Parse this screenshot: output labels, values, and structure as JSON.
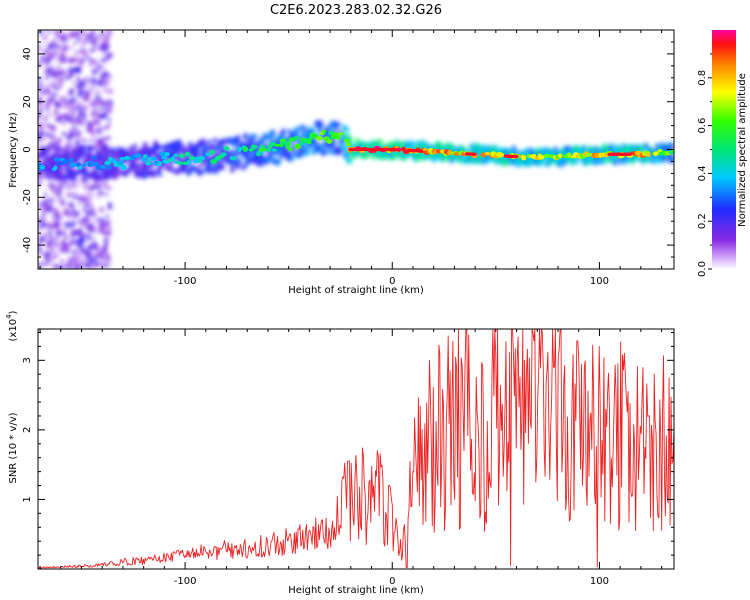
{
  "figure": {
    "title": "C2E6.2023.283.02.32.G26"
  },
  "colors": {
    "snr_line": "#ee2222",
    "background": "#ffffff",
    "axes": "#000000"
  },
  "chart_data": [
    {
      "type": "heatmap",
      "xlabel": "Height of straight line (km)",
      "ylabel": "Frequency (Hz)",
      "xlim": [
        -171,
        136
      ],
      "ylim": [
        -50,
        50
      ],
      "xticks": [
        -100,
        0,
        100
      ],
      "xtick_labels": [
        "-100",
        "0",
        "100"
      ],
      "yticks": [
        -40,
        -20,
        0,
        20,
        40
      ],
      "ytick_labels": [
        "-40",
        "-20",
        "0",
        "20",
        "40"
      ],
      "grid": false,
      "colorbar": {
        "label": "Normalized spectral amplitude",
        "range": [
          0,
          1
        ],
        "ticks": [
          0.0,
          0.2,
          0.4,
          0.6,
          0.8
        ],
        "tick_labels": [
          "0.0",
          "0.2",
          "0.4",
          "0.6",
          "0.8"
        ],
        "colormap": "rainbow (white-violet-blue-cyan-green-yellow-orange-red-magenta)"
      },
      "ridge": {
        "x": [
          -171,
          -150,
          -130,
          -110,
          -90,
          -70,
          -50,
          -35,
          -25,
          -20,
          0,
          20,
          40,
          60,
          80,
          100,
          120,
          136
        ],
        "frequency": [
          -6,
          -6,
          -5,
          -4,
          -3,
          -1,
          2,
          5,
          5,
          0,
          0,
          -1,
          -2,
          -3,
          -3,
          -2,
          -2,
          -1
        ],
        "peak_amplitude": [
          0.35,
          0.4,
          0.4,
          0.45,
          0.5,
          0.55,
          0.6,
          0.65,
          0.6,
          0.95,
          0.95,
          0.9,
          0.85,
          0.85,
          0.8,
          0.85,
          0.9,
          0.6
        ]
      }
    },
    {
      "type": "line",
      "series": [
        {
          "x": [
            -171,
            -160,
            -150,
            -140,
            -130,
            -120,
            -110,
            -100,
            -90,
            -80,
            -70,
            -60,
            -50,
            -40,
            -30,
            -25,
            -20,
            -15,
            -10,
            -5,
            0,
            5,
            10,
            15,
            20,
            30,
            35,
            40,
            45,
            50,
            55,
            60,
            65,
            70,
            75,
            80,
            85,
            90,
            95,
            100,
            105,
            110,
            115,
            120,
            125,
            130,
            136
          ],
          "y": [
            0.02,
            0.03,
            0.04,
            0.06,
            0.1,
            0.12,
            0.16,
            0.2,
            0.24,
            0.28,
            0.3,
            0.34,
            0.4,
            0.45,
            0.6,
            0.8,
            1.0,
            1.2,
            0.9,
            1.1,
            0.7,
            0.3,
            1.4,
            1.6,
            1.8,
            2.0,
            2.2,
            1.8,
            2.1,
            2.6,
            1.9,
            2.4,
            2.3,
            2.5,
            2.0,
            2.6,
            1.5,
            2.1,
            1.7,
            2.2,
            1.6,
            2.0,
            1.5,
            1.8,
            1.6,
            1.8,
            1.7
          ],
          "peaks": [
            {
              "x": -18,
              "y": 1.3
            },
            {
              "x": 10,
              "y": 1.4
            },
            {
              "x": 35,
              "y": 2.9
            },
            {
              "x": 48,
              "y": 2.85
            },
            {
              "x": 68,
              "y": 3.4
            },
            {
              "x": 78,
              "y": 2.9
            },
            {
              "x": 100,
              "y": 3.2
            },
            {
              "x": 113,
              "y": 2.5
            },
            {
              "x": 124,
              "y": 2.2
            }
          ],
          "troughs": [
            {
              "x": 7,
              "y": 0.02
            },
            {
              "x": 57,
              "y": 0.05
            },
            {
              "x": 99,
              "y": 0.03
            },
            {
              "x": 126,
              "y": 0.55
            }
          ]
        }
      ],
      "xlabel": "Height of straight line (km)",
      "ylabel": "SNR (10 * v/v)",
      "y_multiplier_label": "(x10",
      "y_multiplier_exponent": "4",
      "xlim": [
        -171,
        136
      ],
      "ylim": [
        0,
        3.45
      ],
      "xticks": [
        -100,
        0,
        100
      ],
      "xtick_labels": [
        "-100",
        "0",
        "100"
      ],
      "yticks": [
        1,
        2,
        3
      ],
      "ytick_labels": [
        "1",
        "2",
        "3"
      ],
      "grid": false,
      "legend": "none"
    }
  ]
}
